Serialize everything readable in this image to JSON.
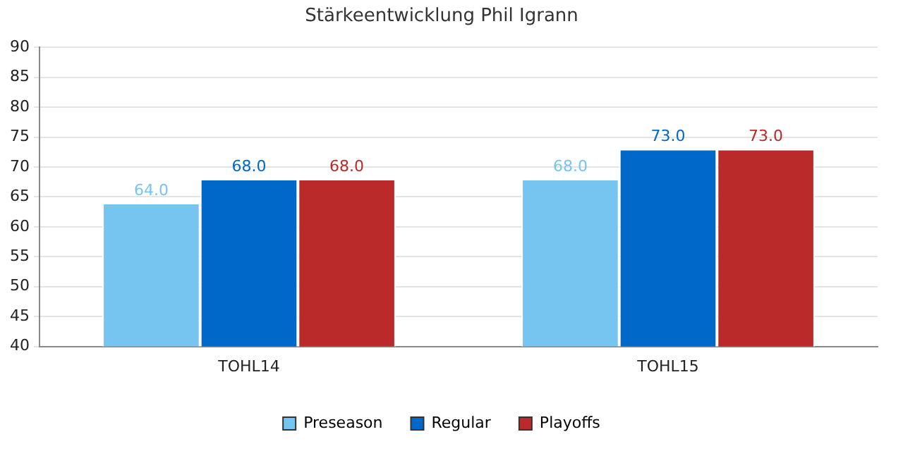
{
  "chart_data": {
    "type": "bar",
    "title": "Stärkeentwicklung Phil Igrann",
    "categories": [
      "TOHL14",
      "TOHL15"
    ],
    "series": [
      {
        "name": "Preseason",
        "color": "#75c5f0",
        "values": [
          64,
          68
        ],
        "value_labels": [
          "64.0",
          "68.0"
        ]
      },
      {
        "name": "Regular",
        "color": "#0068c8",
        "values": [
          68,
          73
        ],
        "value_labels": [
          "68.0",
          "73.0"
        ]
      },
      {
        "name": "Playoffs",
        "color": "#bb2a2a",
        "values": [
          68,
          73
        ],
        "value_labels": [
          "68.0",
          "73.0"
        ]
      }
    ],
    "ylim": [
      40,
      90
    ],
    "yticks": [
      40,
      45,
      50,
      55,
      60,
      65,
      70,
      75,
      80,
      85,
      90
    ],
    "grid": "y",
    "legend": "bottom"
  }
}
